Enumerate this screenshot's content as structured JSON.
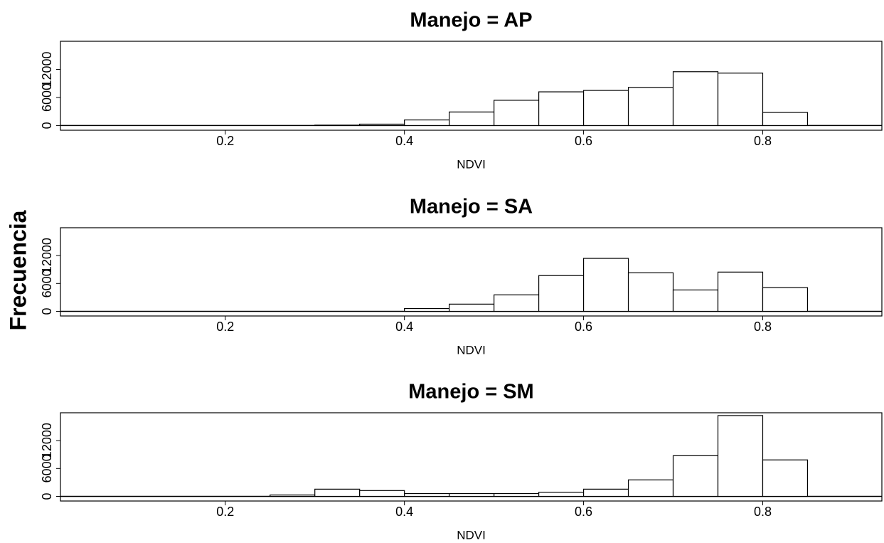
{
  "y_label": "Frecuencia",
  "chart_data": [
    {
      "type": "histogram",
      "title": "Manejo = AP",
      "xlabel": "NDVI",
      "bins": [
        0.25,
        0.3,
        0.35,
        0.4,
        0.45,
        0.5,
        0.55,
        0.6,
        0.65,
        0.7,
        0.75,
        0.8,
        0.85
      ],
      "values": [
        0,
        100,
        300,
        1200,
        2900,
        5400,
        7200,
        7500,
        8150,
        11500,
        11200,
        2800
      ],
      "color": "#ffffff",
      "xlim": [
        0.016,
        0.933
      ],
      "xticks": [
        0.2,
        0.4,
        0.6,
        0.8
      ],
      "ylim": [
        -1000,
        18000
      ],
      "yticks": [
        0,
        6000,
        12000
      ]
    },
    {
      "type": "histogram",
      "title": "Manejo = SA",
      "xlabel": "NDVI",
      "bins": [
        0.25,
        0.3,
        0.35,
        0.4,
        0.45,
        0.5,
        0.55,
        0.6,
        0.65,
        0.7,
        0.75,
        0.8,
        0.85
      ],
      "values": [
        0,
        0,
        0,
        600,
        1550,
        3550,
        7700,
        11400,
        8300,
        4600,
        8450,
        5100
      ],
      "color": "#ffffff",
      "xlim": [
        0.016,
        0.933
      ],
      "xticks": [
        0.2,
        0.4,
        0.6,
        0.8
      ],
      "ylim": [
        -1000,
        18000
      ],
      "yticks": [
        0,
        6000,
        12000
      ]
    },
    {
      "type": "histogram",
      "title": "Manejo = SM",
      "xlabel": "NDVI",
      "bins": [
        0.25,
        0.3,
        0.35,
        0.4,
        0.45,
        0.5,
        0.55,
        0.6,
        0.65,
        0.7,
        0.75,
        0.8,
        0.85
      ],
      "values": [
        300,
        1550,
        1250,
        600,
        600,
        600,
        900,
        1550,
        3550,
        8750,
        17400,
        7850
      ],
      "color": "#ffffff",
      "xlim": [
        0.016,
        0.933
      ],
      "xticks": [
        0.2,
        0.4,
        0.6,
        0.8
      ],
      "ylim": [
        -1000,
        18000
      ],
      "yticks": [
        0,
        6000,
        12000
      ]
    }
  ]
}
